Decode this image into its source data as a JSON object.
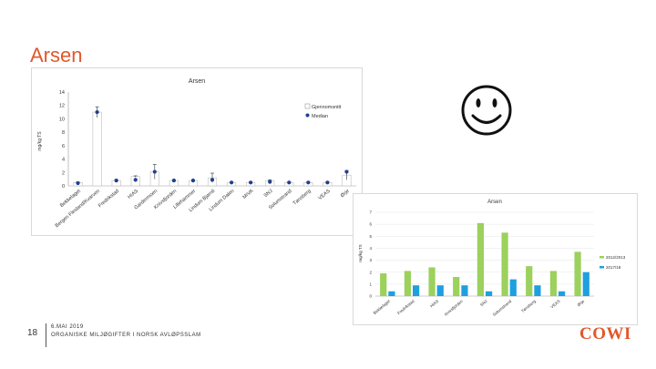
{
  "slide": {
    "title": "Arsen",
    "page_number": "18",
    "date": "6.MAI 2019",
    "subtitle": "ORGANISKE MILJØGIFTER I NORSK AVLØPSSLAM",
    "logo": "COWI",
    "accent_color": "#e2572a",
    "decoration_icon": "smiley-face-icon"
  },
  "chart_data": [
    {
      "type": "bar",
      "title": "Arsen",
      "ylabel": "mg/kg TS",
      "xlabel": "",
      "ylim": [
        0,
        14
      ],
      "yticks": [
        0,
        2,
        4,
        6,
        8,
        10,
        12,
        14
      ],
      "grid": false,
      "legend_position": "top-right",
      "categories": [
        "Bekkelaget",
        "Bergen Flesland/Kvarven",
        "Fredrikstad",
        "HIAS",
        "Gardermoen",
        "Knivsfjorden",
        "Lillehammer",
        "Lindum Bjørnli",
        "Lindum Dalen",
        "MIVA",
        "SNJ",
        "Solumstrand",
        "Tønsberg",
        "VEAS",
        "Ørje"
      ],
      "series": [
        {
          "name": "Gjennomsnitt",
          "type": "bar",
          "color": "#ffffff",
          "values": [
            0.5,
            11,
            0.8,
            1.4,
            2.1,
            0.8,
            0.8,
            1.2,
            0.5,
            0.5,
            0.8,
            0.5,
            0.5,
            0.5,
            1.6
          ]
        },
        {
          "name": "Median",
          "type": "point",
          "color": "#1f3f8f",
          "values": [
            0.4,
            11,
            0.8,
            0.9,
            2.1,
            0.8,
            0.8,
            0.9,
            0.5,
            0.5,
            0.6,
            0.5,
            0.5,
            0.5,
            2.1
          ]
        }
      ],
      "error_bars": [
        0.1,
        0.8,
        0.1,
        0.1,
        1.1,
        0.1,
        0.1,
        0.7,
        0.1,
        0.1,
        0.1,
        0.1,
        0.1,
        0.1,
        0.7
      ]
    },
    {
      "type": "bar",
      "title": "Arsen",
      "ylabel": "mg/kg TS",
      "xlabel": "",
      "ylim": [
        0,
        7
      ],
      "yticks": [
        0,
        1,
        2,
        3,
        4,
        5,
        6,
        7
      ],
      "grid": true,
      "legend_position": "right",
      "categories": [
        "Bekkelaget",
        "Fredrikstad",
        "HIAS",
        "Knivsfjorden",
        "SNJ",
        "Solumstrand",
        "Tønsberg",
        "VEAS",
        "Ørje"
      ],
      "series": [
        {
          "name": "2012/2013",
          "color": "#9bd15c",
          "values": [
            1.9,
            2.1,
            2.4,
            1.6,
            6.1,
            5.3,
            2.5,
            2.1,
            3.7
          ]
        },
        {
          "name": "2017/18",
          "color": "#1ea0df",
          "values": [
            0.4,
            0.9,
            0.9,
            0.9,
            0.4,
            1.4,
            0.9,
            0.4,
            2.0
          ]
        }
      ]
    }
  ]
}
